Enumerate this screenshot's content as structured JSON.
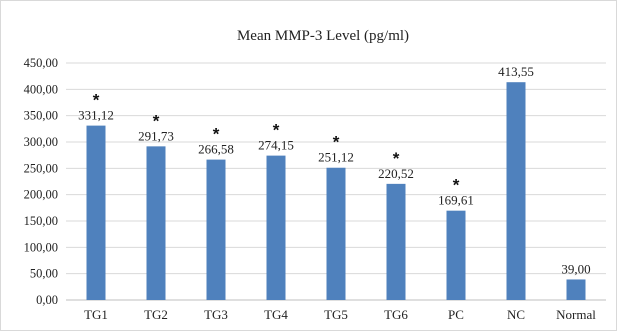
{
  "chart_data": {
    "type": "bar",
    "title": "Mean MMP-3 Level (pg/ml)",
    "categories": [
      "TG1",
      "TG2",
      "TG3",
      "TG4",
      "TG5",
      "TG6",
      "PC",
      "NC",
      "Normal"
    ],
    "values": [
      331.12,
      291.73,
      266.58,
      274.15,
      251.12,
      220.52,
      169.61,
      413.55,
      39.0
    ],
    "value_labels": [
      "331,12",
      "291,73",
      "266,58",
      "274,15",
      "251,12",
      "220,52",
      "169,61",
      "413,55",
      "39,00"
    ],
    "significance_marks": [
      "*",
      "*",
      "*",
      "*",
      "*",
      "*",
      "*",
      "",
      ""
    ],
    "ylim": [
      0,
      450
    ],
    "yticks": [
      0,
      50,
      100,
      150,
      200,
      250,
      300,
      350,
      400,
      450
    ],
    "ytick_labels": [
      "0,00",
      "50,00",
      "100,00",
      "150,00",
      "200,00",
      "250,00",
      "300,00",
      "350,00",
      "400,00",
      "450,00"
    ],
    "grid": true,
    "bar_color": "#4f81bd"
  }
}
